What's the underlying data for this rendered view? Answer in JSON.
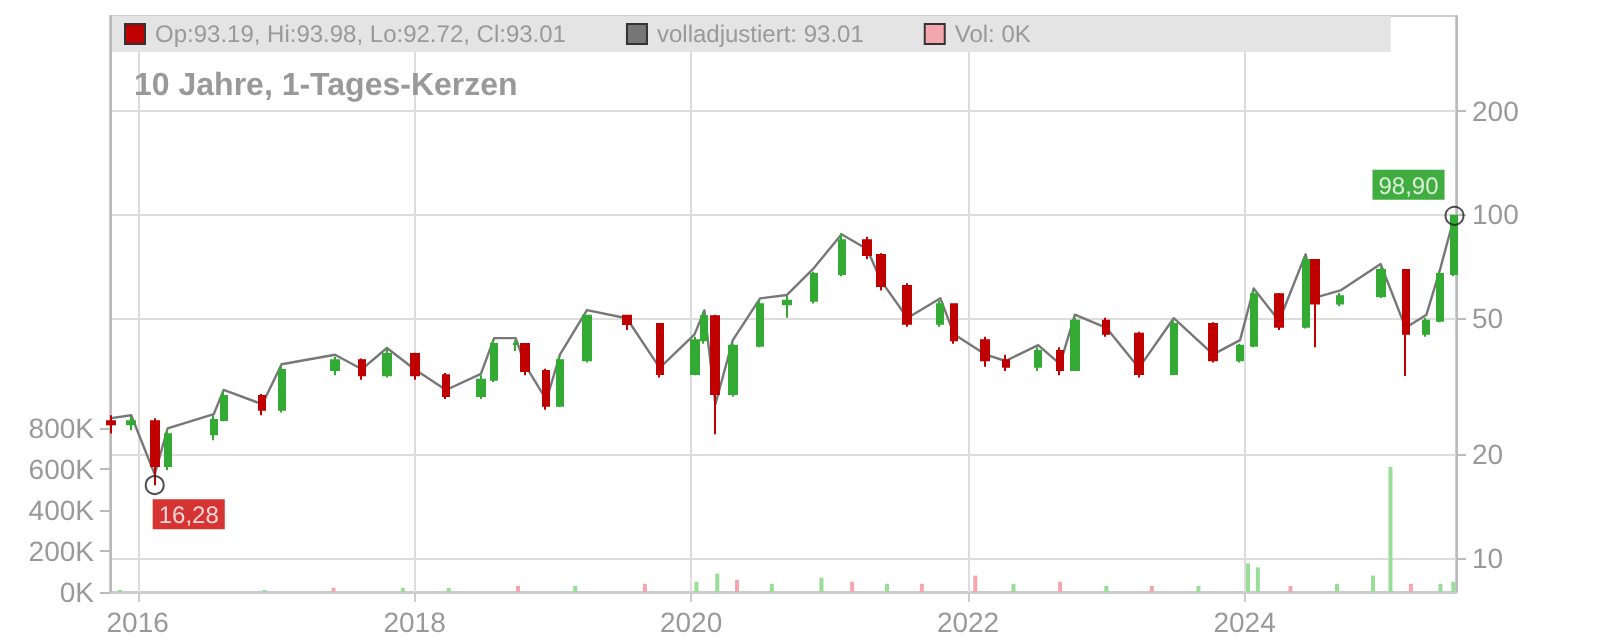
{
  "chart_data": {
    "type": "candlestick",
    "title": "10 Jahre, 1-Tages-Kerzen",
    "x": [
      "2015-10-23",
      "2015-12-15",
      "2016-02-15",
      "2016-03-20",
      "2016-07-20",
      "2016-08-15",
      "2016-11-25",
      "2017-01-15",
      "2017-06-05",
      "2017-08-15",
      "2017-10-20",
      "2018-01-01",
      "2018-03-25",
      "2018-06-25",
      "2018-07-30",
      "2018-09-25",
      "2018-10-20",
      "2018-12-15",
      "2019-01-20",
      "2019-04-01",
      "2019-07-15",
      "2019-10-10",
      "2020-01-10",
      "2020-02-05",
      "2020-03-05",
      "2020-04-20",
      "2020-07-01",
      "2020-09-10",
      "2020-11-20",
      "2021-02-01",
      "2021-04-10",
      "2021-05-15",
      "2021-07-25",
      "2021-10-20",
      "2021-11-25",
      "2022-02-15",
      "2022-04-10",
      "2022-07-05",
      "2022-09-01",
      "2022-10-10",
      "2023-01-01",
      "2023-03-28",
      "2023-06-28",
      "2023-10-10",
      "2023-12-20",
      "2024-01-25",
      "2024-04-01",
      "2024-06-10",
      "2024-07-05",
      "2024-09-10",
      "2024-12-25",
      "2025-03-01",
      "2025-04-25",
      "2025-06-01",
      "2025-07-08"
    ],
    "series": [
      {
        "name": "Op:93.19, Hi:93.98, Lo:92.72, Cl:93.01",
        "color": "#c00000",
        "ohlc": [
          [
            25,
            26,
            23,
            24.5
          ],
          [
            24.5,
            25.8,
            23.5,
            25
          ],
          [
            25,
            25.5,
            16.28,
            18.5
          ],
          [
            18.5,
            23.5,
            18,
            22.9
          ],
          [
            22.9,
            26,
            22,
            25.2
          ],
          [
            25.2,
            30.5,
            25,
            29.6
          ],
          [
            29.6,
            30,
            26,
            27
          ],
          [
            27,
            36,
            26.5,
            35.2
          ],
          [
            35.2,
            38.5,
            34,
            37.6
          ],
          [
            37.6,
            38,
            33,
            34
          ],
          [
            34,
            40.5,
            33.5,
            39.2
          ],
          [
            39.2,
            39.5,
            33,
            34
          ],
          [
            34,
            34.5,
            29,
            29.6
          ],
          [
            29.6,
            34,
            29,
            33
          ],
          [
            33,
            43,
            32.5,
            41.9
          ],
          [
            41.9,
            43,
            40,
            41.9
          ],
          [
            41.9,
            42,
            34,
            35
          ],
          [
            35,
            35.5,
            27,
            27.7
          ],
          [
            27.7,
            38.5,
            27.5,
            37.6
          ],
          [
            37.6,
            51,
            37,
            50.6
          ],
          [
            50.6,
            51,
            46,
            47.9
          ],
          [
            47.9,
            48,
            33.5,
            34.3
          ],
          [
            34.3,
            44,
            34,
            43
          ],
          [
            43,
            52,
            42,
            50.5
          ],
          [
            50.5,
            51,
            22.9,
            30
          ],
          [
            30,
            42,
            29.5,
            41.4
          ],
          [
            41.4,
            56,
            41,
            54.7
          ],
          [
            54.7,
            58,
            50,
            56
          ],
          [
            56,
            68,
            55,
            67
          ],
          [
            67,
            88,
            66,
            84
          ],
          [
            84,
            86,
            74,
            76
          ],
          [
            76,
            77,
            60,
            61.8
          ],
          [
            61.8,
            63,
            47,
            48
          ],
          [
            48,
            56,
            47,
            54.7
          ],
          [
            54.7,
            55,
            42,
            43
          ],
          [
            43,
            44,
            36,
            37.6
          ],
          [
            37.6,
            39,
            35,
            36
          ],
          [
            36,
            41,
            35,
            40
          ],
          [
            40,
            41,
            34,
            35.2
          ],
          [
            35.2,
            50,
            35,
            49
          ],
          [
            49,
            50,
            44,
            44.9
          ],
          [
            44.9,
            45.5,
            33.5,
            34.3
          ],
          [
            34.3,
            49,
            34,
            47.9
          ],
          [
            47.9,
            48.5,
            37,
            37.6
          ],
          [
            37.6,
            42,
            37,
            41.4
          ],
          [
            41.4,
            60,
            41,
            58.5
          ],
          [
            58.5,
            59,
            46,
            47
          ],
          [
            47,
            75,
            46.5,
            73.5
          ],
          [
            73.5,
            74,
            41,
            55
          ],
          [
            55,
            59,
            54,
            57.7
          ],
          [
            57.7,
            70,
            57,
            68.8
          ],
          [
            68.8,
            69,
            33.8,
            44.9
          ],
          [
            44.9,
            50,
            44,
            49
          ],
          [
            49,
            68,
            48.5,
            67
          ],
          [
            67,
            98.9,
            66,
            98.9
          ]
        ],
        "colors": [
          "#c00000",
          "#33aa33",
          "#c00000",
          "#33aa33",
          "#33aa33",
          "#33aa33",
          "#c00000",
          "#33aa33",
          "#33aa33",
          "#c00000",
          "#33aa33",
          "#c00000",
          "#c00000",
          "#33aa33",
          "#33aa33",
          "#33aa33",
          "#c00000",
          "#c00000",
          "#33aa33",
          "#33aa33",
          "#c00000",
          "#c00000",
          "#33aa33",
          "#33aa33",
          "#c00000",
          "#33aa33",
          "#33aa33",
          "#33aa33",
          "#33aa33",
          "#33aa33",
          "#c00000",
          "#c00000",
          "#c00000",
          "#33aa33",
          "#c00000",
          "#c00000",
          "#c00000",
          "#33aa33",
          "#c00000",
          "#33aa33",
          "#c00000",
          "#c00000",
          "#33aa33",
          "#c00000",
          "#33aa33",
          "#33aa33",
          "#c00000",
          "#33aa33",
          "#c00000",
          "#33aa33",
          "#33aa33",
          "#c00000",
          "#33aa33",
          "#33aa33",
          "#33aa33"
        ]
      },
      {
        "type": "line",
        "name": "volladjustiert: 93.01",
        "color": "#777777",
        "values": [
          25.5,
          26,
          17.5,
          23.8,
          26.2,
          30.8,
          28,
          36.6,
          39,
          35.4,
          40.8,
          35.4,
          30.8,
          34.3,
          43.6,
          43.6,
          36.4,
          28.8,
          39.1,
          52.6,
          49.8,
          35.7,
          44.7,
          52.5,
          28,
          43,
          56.9,
          58.2,
          69.7,
          87.4,
          79,
          64.3,
          49.9,
          56.9,
          44.7,
          39.1,
          37.4,
          41.6,
          36.6,
          51,
          46.7,
          35.7,
          49.8,
          39.1,
          43,
          60.8,
          48.9,
          76.4,
          57.2,
          60,
          71.6,
          46.7,
          51,
          69.7,
          98.9
        ]
      },
      {
        "type": "bar",
        "axis": "y2",
        "name": "Vol: 0K",
        "color": "#f4a6ae",
        "x": [
          "2015-11-15",
          "2016-06-01",
          "2016-12-01",
          "2017-06-01",
          "2017-12-01",
          "2018-04-01",
          "2018-10-01",
          "2019-03-01",
          "2019-09-01",
          "2020-01-15",
          "2020-03-10",
          "2020-05-01",
          "2020-08-01",
          "2020-12-10",
          "2021-03-01",
          "2021-06-01",
          "2021-09-01",
          "2022-01-20",
          "2022-05-01",
          "2022-09-01",
          "2023-01-01",
          "2023-05-01",
          "2023-09-01",
          "2024-01-10",
          "2024-02-05",
          "2024-05-01",
          "2024-09-01",
          "2024-12-05",
          "2025-01-20",
          "2025-03-15",
          "2025-06-01",
          "2025-07-05"
        ],
        "values": [
          10000,
          null,
          10000,
          20000,
          20000,
          20000,
          30000,
          30000,
          40000,
          50000,
          90000,
          60000,
          40000,
          70000,
          50000,
          40000,
          40000,
          80000,
          40000,
          50000,
          30000,
          30000,
          30000,
          140000,
          120000,
          30000,
          40000,
          80000,
          610000,
          40000,
          40000,
          50000
        ],
        "colors": [
          "#99dd99",
          "#f4a6ae",
          "#99dd99",
          "#f4a6ae",
          "#99dd99",
          "#99dd99",
          "#f4a6ae",
          "#99dd99",
          "#f4a6ae",
          "#99dd99",
          "#99dd99",
          "#f4a6ae",
          "#99dd99",
          "#99dd99",
          "#f4a6ae",
          "#99dd99",
          "#f4a6ae",
          "#f4a6ae",
          "#99dd99",
          "#f4a6ae",
          "#99dd99",
          "#f4a6ae",
          "#99dd99",
          "#99dd99",
          "#99dd99",
          "#f4a6ae",
          "#99dd99",
          "#99dd99",
          "#99dd99",
          "#f4a6ae",
          "#99dd99",
          "#99dd99"
        ]
      }
    ],
    "xlim": [
      "2015-10-20",
      "2025-07-12"
    ],
    "xticks": [
      "2016",
      "2018",
      "2020",
      "2022",
      "2024"
    ],
    "ylim": [
      7.96,
      377
    ],
    "yticks": [
      10,
      20,
      50,
      100,
      200
    ],
    "log": "y",
    "y2lim": [
      0,
      2810000
    ],
    "y2ticks": [
      {
        "value": 0,
        "label": "0K"
      },
      {
        "value": 200000,
        "label": "200K"
      },
      {
        "value": 400000,
        "label": "400K"
      },
      {
        "value": 600000,
        "label": "600K"
      },
      {
        "value": 800000,
        "label": "800K"
      }
    ],
    "annotations": [
      {
        "text": "98,90",
        "x": "2025-07-08",
        "y": 98.9
      },
      {
        "text": "16,28",
        "x": "2016-02-15",
        "y": 16.28
      }
    ],
    "grid": true,
    "legend": "top left"
  }
}
